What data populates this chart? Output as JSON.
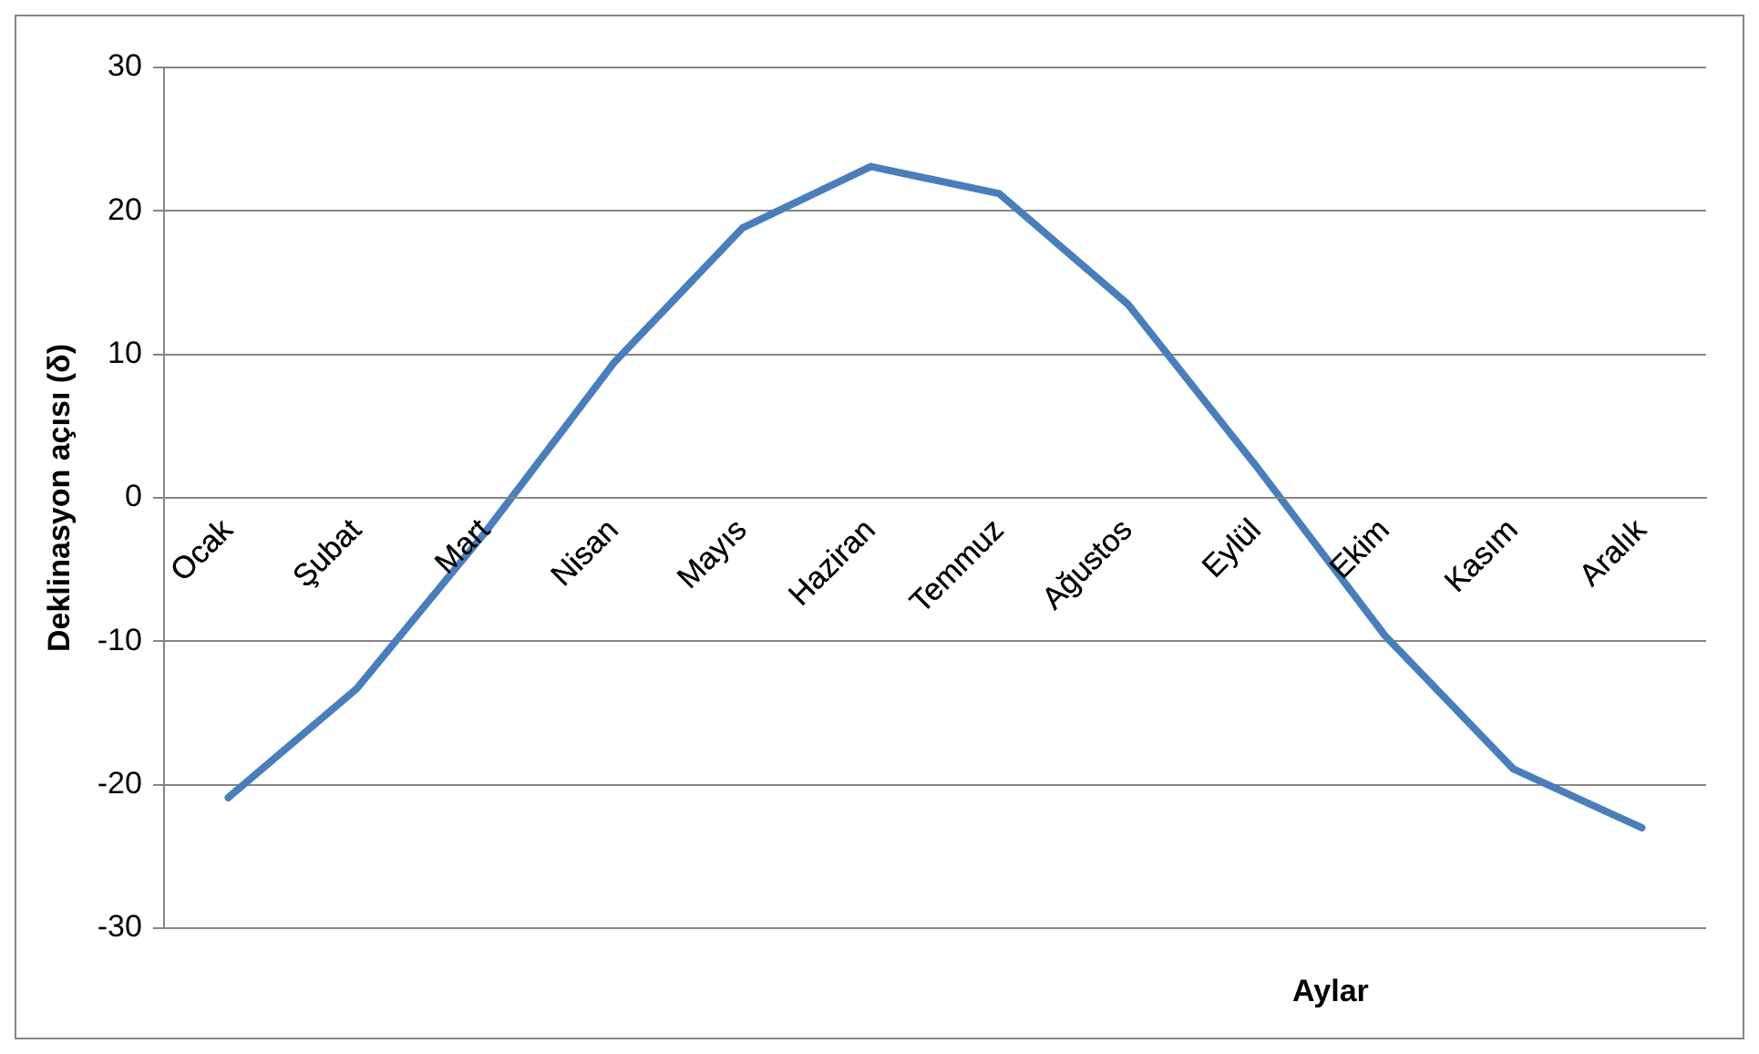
{
  "chart_data": {
    "type": "line",
    "ylabel": "Deklinasyon açısı (δ)",
    "xlabel": "Aylar",
    "categories": [
      "Ocak",
      "Şubat",
      "Mart",
      "Nisan",
      "Mayıs",
      "Haziran",
      "Temmuz",
      "Ağustos",
      "Eylül",
      "Ekim",
      "Kasım",
      "Aralık"
    ],
    "series": [
      {
        "color": "#4a7ebb",
        "values": [
          -20.9,
          -13.3,
          -2.4,
          9.4,
          18.8,
          23.1,
          21.2,
          13.5,
          2.2,
          -9.6,
          -18.9,
          -23.0
        ]
      }
    ],
    "ylim": [
      -30,
      30
    ],
    "yticks": [
      -30,
      -20,
      -10,
      0,
      10,
      20,
      30
    ],
    "grid": "y",
    "legend": false,
    "marker": "none",
    "line_style": "solid"
  }
}
